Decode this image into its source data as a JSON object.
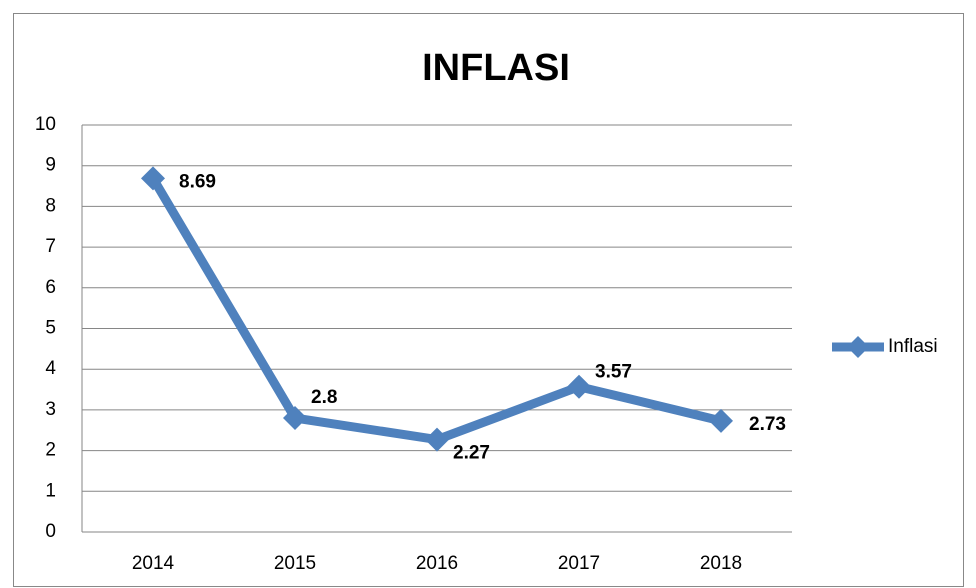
{
  "chart_data": {
    "type": "line",
    "title": "INFLASI",
    "categories": [
      "2014",
      "2015",
      "2016",
      "2017",
      "2018"
    ],
    "series": [
      {
        "name": "Inflasi",
        "color": "#4f81bd",
        "values": [
          8.69,
          2.8,
          2.27,
          3.57,
          2.73
        ]
      }
    ],
    "ylim": [
      0,
      10
    ],
    "yticks": [
      0,
      1,
      2,
      3,
      4,
      5,
      6,
      7,
      8,
      9,
      10
    ],
    "grid": true,
    "legend": "right"
  }
}
